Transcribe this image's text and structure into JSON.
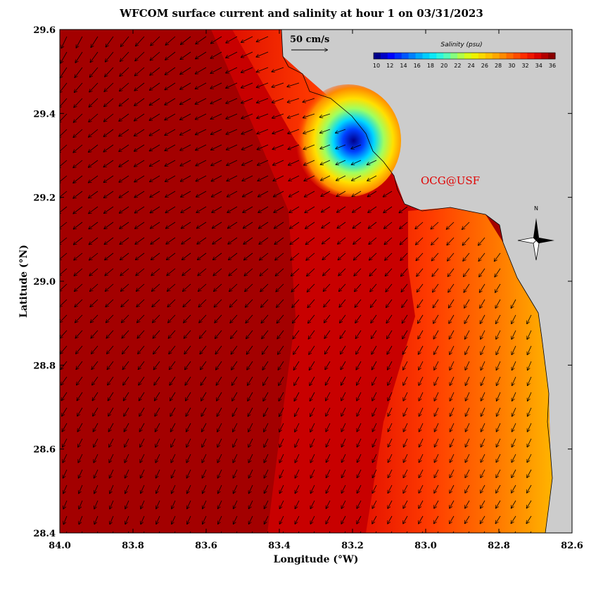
{
  "title": "WFCOM surface current and salinity at hour 1 on 03/31/2023",
  "axes": {
    "x_label": "Longitude (°W)",
    "y_label": "Latitude (°N)",
    "x_ticks": [
      "84.0",
      "83.8",
      "83.6",
      "83.4",
      "83.2",
      "83.0",
      "82.8",
      "82.6"
    ],
    "y_ticks": [
      "29.6",
      "29.4",
      "29.2",
      "29.0",
      "28.8",
      "28.6",
      "28.4"
    ],
    "x_range_deg_w": [
      84.0,
      82.6
    ],
    "y_range_deg_n": [
      28.4,
      29.6
    ]
  },
  "scale_label": "50 cm/s",
  "colorbar": {
    "title": "Salinity (psu)",
    "ticks": [
      "10",
      "12",
      "14",
      "16",
      "18",
      "20",
      "22",
      "24",
      "26",
      "28",
      "30",
      "32",
      "34",
      "36"
    ],
    "range": [
      10,
      36
    ],
    "colors": [
      "#00008b",
      "#0000ff",
      "#0050ff",
      "#00a0ff",
      "#00e5ff",
      "#40ffd0",
      "#a0ff60",
      "#e8ff00",
      "#ffd000",
      "#ffa000",
      "#ff6400",
      "#ff2800",
      "#d80000",
      "#8b0000"
    ]
  },
  "credit": "OCG@USF",
  "compass": {
    "north_label": "N"
  },
  "colors": {
    "land": "#cccccc",
    "deep_salinity": "#a30000",
    "coastal_salinity": "#ff7800",
    "credit_text": "#e00000"
  }
}
